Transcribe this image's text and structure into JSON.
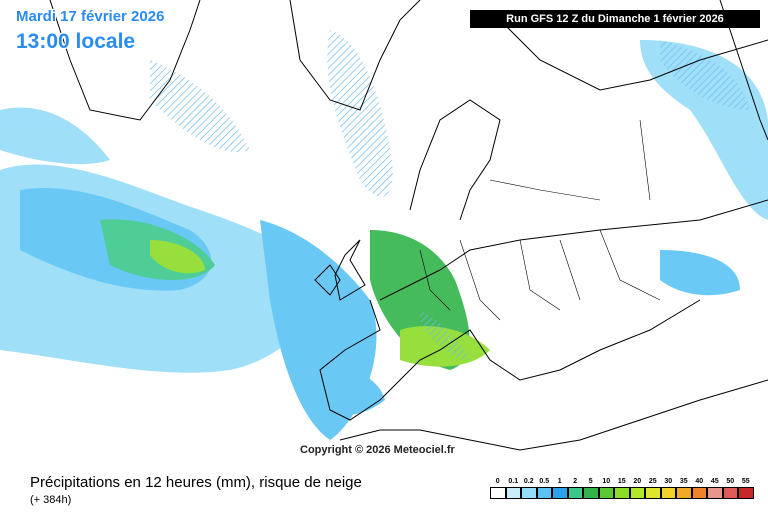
{
  "header": {
    "date": "Mardi 17 février 2026",
    "time": "13:00 locale",
    "run": "Run GFS 12 Z du Dimanche 1 février 2026"
  },
  "copyright": "Copyright © 2026 Meteociel.fr",
  "footer": {
    "title": "Précipitations en 12 heures (mm), risque de neige",
    "lead": "(+ 384h)"
  },
  "legend": {
    "items": [
      {
        "label": "0",
        "color": "#ffffff"
      },
      {
        "label": "0.1",
        "color": "#c8eefc"
      },
      {
        "label": "0.2",
        "color": "#96dcf8"
      },
      {
        "label": "0.5",
        "color": "#5ac3f4"
      },
      {
        "label": "1",
        "color": "#2ca2ec"
      },
      {
        "label": "2",
        "color": "#3cc88c"
      },
      {
        "label": "5",
        "color": "#32b44b"
      },
      {
        "label": "10",
        "color": "#5ac832"
      },
      {
        "label": "15",
        "color": "#8cdc28"
      },
      {
        "label": "20",
        "color": "#b4e628"
      },
      {
        "label": "25",
        "color": "#dce628"
      },
      {
        "label": "30",
        "color": "#f0d228"
      },
      {
        "label": "35",
        "color": "#f0aa28"
      },
      {
        "label": "40",
        "color": "#f08228"
      },
      {
        "label": "45",
        "color": "#e8968c"
      },
      {
        "label": "50",
        "color": "#e05a5a"
      },
      {
        "label": "55",
        "color": "#c82828"
      }
    ]
  }
}
